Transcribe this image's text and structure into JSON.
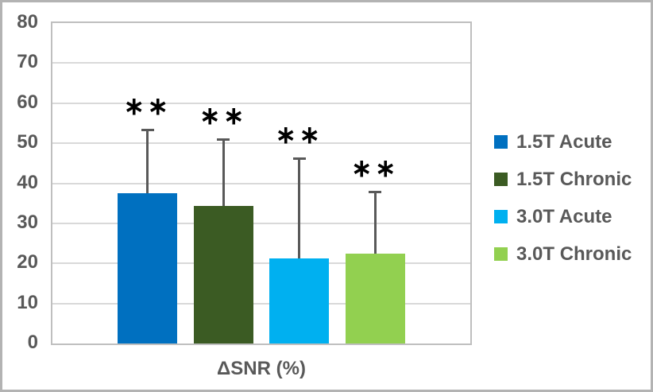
{
  "chart_data": {
    "type": "bar",
    "title": "",
    "xlabel": "ΔSNR (%)",
    "ylabel": "",
    "ylim": [
      0,
      80
    ],
    "ytick_step": 10,
    "ytick_labels": [
      "0",
      "10",
      "20",
      "30",
      "40",
      "50",
      "60",
      "70",
      "80"
    ],
    "grid": true,
    "legend_position": "right",
    "categories": [
      "ΔSNR (%)"
    ],
    "series": [
      {
        "name": "1.5T Acute",
        "value": 37.5,
        "error_top": 53.5,
        "annotation": "∗∗",
        "color": "#0070C0"
      },
      {
        "name": "1.5T Chronic",
        "value": 34.3,
        "error_top": 51.3,
        "annotation": "∗∗",
        "color": "#3B5B23"
      },
      {
        "name": "3.0T Acute",
        "value": 21.2,
        "error_top": 46.4,
        "annotation": "∗∗",
        "color": "#00B0F0"
      },
      {
        "name": "3.0T Chronic",
        "value": 22.5,
        "error_top": 38.1,
        "annotation": "∗∗",
        "color": "#92D050"
      }
    ],
    "colors": {
      "axis_text": "#595959",
      "gridline": "#D9D9D9",
      "plot_border": "#BFBFBF",
      "error_bar": "#595959",
      "annotation": "#000000",
      "frame_border": "#B3B3B3",
      "background": "#FFFFFF"
    }
  }
}
